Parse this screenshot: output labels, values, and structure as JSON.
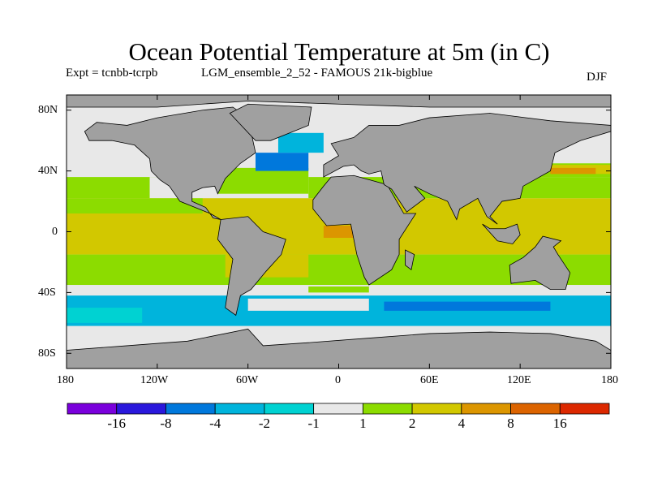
{
  "title": "Ocean Potential Temperature at 5m (in C)",
  "subtitle_left": "Expt = tcnbb-tcrpb",
  "subtitle_center": "LGM_ensemble_2_52 - FAMOUS 21k-bigblue",
  "season": "DJF",
  "lat_ticks": [
    "80N",
    "40N",
    "0",
    "40S",
    "80S"
  ],
  "lon_ticks": [
    "180",
    "120W",
    "60W",
    "0",
    "60E",
    "120E",
    "180"
  ],
  "colorbar": {
    "labels": [
      "-16",
      "-8",
      "-4",
      "-2",
      "-1",
      "1",
      "2",
      "4",
      "8",
      "16"
    ],
    "colors": [
      "#7a00dc",
      "#2a18dc",
      "#0078dc",
      "#00b4dc",
      "#00d2d2",
      "#e8e8e8",
      "#8cdc00",
      "#d2c800",
      "#dc9600",
      "#dc6400",
      "#dc2800"
    ]
  },
  "land_color": "#a0a0a0"
}
